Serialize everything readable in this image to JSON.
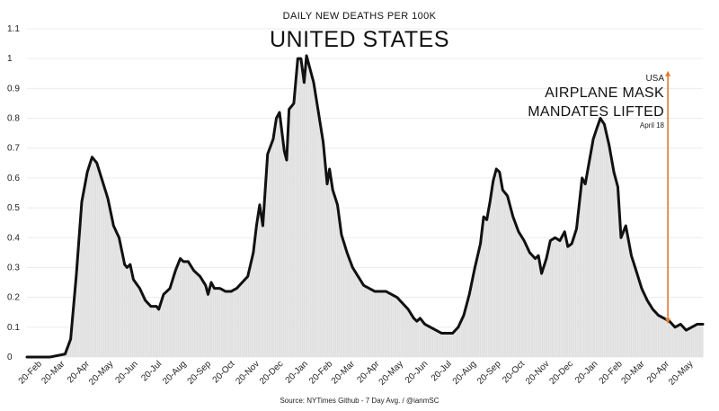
{
  "chart_data": {
    "type": "area",
    "subtitle": "DAILY NEW DEATHS PER 100K",
    "title": "UNITED STATES",
    "source": "Source: NYTimes Github - 7 Day Avg. / @ianmSC",
    "ylim": [
      0,
      1.1
    ],
    "yticks": [
      "0",
      "0.1",
      "0.2",
      "0.3",
      "0.4",
      "0.5",
      "0.6",
      "0.7",
      "0.8",
      "0.9",
      "1",
      "1.1"
    ],
    "x_start": "2020-02-01",
    "x_end": "2022-06-01",
    "xtick_labels": [
      "20-Feb",
      "20-Mar",
      "20-Apr",
      "20-May",
      "20-Jun",
      "20-Jul",
      "20-Aug",
      "20-Sep",
      "20-Oct",
      "20-Nov",
      "20-Dec",
      "20-Jan",
      "20-Feb",
      "20-Mar",
      "20-Apr",
      "20-May",
      "20-Jun",
      "20-Jul",
      "20-Aug",
      "20-Sep",
      "20-Oct",
      "20-Nov",
      "20-Dec",
      "20-Jan",
      "20-Feb",
      "20-Mar",
      "20-Apr",
      "20-May"
    ],
    "xtick_dates": [
      "2020-02-20",
      "2020-03-20",
      "2020-04-20",
      "2020-05-20",
      "2020-06-20",
      "2020-07-20",
      "2020-08-20",
      "2020-09-20",
      "2020-10-20",
      "2020-11-20",
      "2020-12-20",
      "2021-01-20",
      "2021-02-20",
      "2021-03-20",
      "2021-04-20",
      "2021-05-20",
      "2021-06-20",
      "2021-07-20",
      "2021-08-20",
      "2021-09-20",
      "2021-10-20",
      "2021-11-20",
      "2021-12-20",
      "2022-01-20",
      "2022-02-20",
      "2022-03-20",
      "2022-04-20",
      "2022-05-20"
    ],
    "series": [
      {
        "line_color": "#111111",
        "fill_color": "#e0e0e0",
        "points": [
          [
            "2020-02-01",
            0.0
          ],
          [
            "2020-03-01",
            0.0
          ],
          [
            "2020-03-20",
            0.01
          ],
          [
            "2020-03-27",
            0.06
          ],
          [
            "2020-04-03",
            0.27
          ],
          [
            "2020-04-10",
            0.52
          ],
          [
            "2020-04-17",
            0.62
          ],
          [
            "2020-04-23",
            0.67
          ],
          [
            "2020-04-29",
            0.65
          ],
          [
            "2020-05-06",
            0.59
          ],
          [
            "2020-05-13",
            0.53
          ],
          [
            "2020-05-20",
            0.44
          ],
          [
            "2020-05-27",
            0.4
          ],
          [
            "2020-06-03",
            0.31
          ],
          [
            "2020-06-06",
            0.3
          ],
          [
            "2020-06-10",
            0.31
          ],
          [
            "2020-06-14",
            0.26
          ],
          [
            "2020-06-22",
            0.23
          ],
          [
            "2020-06-29",
            0.19
          ],
          [
            "2020-07-06",
            0.17
          ],
          [
            "2020-07-13",
            0.17
          ],
          [
            "2020-07-16",
            0.16
          ],
          [
            "2020-07-22",
            0.21
          ],
          [
            "2020-07-30",
            0.23
          ],
          [
            "2020-08-06",
            0.29
          ],
          [
            "2020-08-12",
            0.33
          ],
          [
            "2020-08-16",
            0.32
          ],
          [
            "2020-08-22",
            0.32
          ],
          [
            "2020-08-29",
            0.29
          ],
          [
            "2020-09-06",
            0.27
          ],
          [
            "2020-09-13",
            0.24
          ],
          [
            "2020-09-16",
            0.21
          ],
          [
            "2020-09-20",
            0.25
          ],
          [
            "2020-09-24",
            0.23
          ],
          [
            "2020-10-01",
            0.23
          ],
          [
            "2020-10-08",
            0.22
          ],
          [
            "2020-10-15",
            0.22
          ],
          [
            "2020-10-22",
            0.23
          ],
          [
            "2020-10-29",
            0.25
          ],
          [
            "2020-11-05",
            0.27
          ],
          [
            "2020-11-12",
            0.35
          ],
          [
            "2020-11-16",
            0.44
          ],
          [
            "2020-11-20",
            0.51
          ],
          [
            "2020-11-24",
            0.44
          ],
          [
            "2020-11-30",
            0.68
          ],
          [
            "2020-12-07",
            0.73
          ],
          [
            "2020-12-11",
            0.8
          ],
          [
            "2020-12-15",
            0.82
          ],
          [
            "2020-12-21",
            0.69
          ],
          [
            "2020-12-24",
            0.66
          ],
          [
            "2020-12-27",
            0.83
          ],
          [
            "2021-01-02",
            0.85
          ],
          [
            "2021-01-07",
            1.0
          ],
          [
            "2021-01-11",
            1.0
          ],
          [
            "2021-01-15",
            0.92
          ],
          [
            "2021-01-18",
            1.01
          ],
          [
            "2021-01-22",
            0.97
          ],
          [
            "2021-01-27",
            0.92
          ],
          [
            "2021-02-02",
            0.82
          ],
          [
            "2021-02-08",
            0.72
          ],
          [
            "2021-02-13",
            0.58
          ],
          [
            "2021-02-16",
            0.63
          ],
          [
            "2021-02-20",
            0.56
          ],
          [
            "2021-02-26",
            0.51
          ],
          [
            "2021-03-03",
            0.41
          ],
          [
            "2021-03-10",
            0.35
          ],
          [
            "2021-03-17",
            0.3
          ],
          [
            "2021-03-24",
            0.27
          ],
          [
            "2021-03-31",
            0.24
          ],
          [
            "2021-04-07",
            0.23
          ],
          [
            "2021-04-14",
            0.22
          ],
          [
            "2021-04-21",
            0.22
          ],
          [
            "2021-04-28",
            0.22
          ],
          [
            "2021-05-05",
            0.21
          ],
          [
            "2021-05-12",
            0.2
          ],
          [
            "2021-05-19",
            0.18
          ],
          [
            "2021-05-26",
            0.16
          ],
          [
            "2021-06-02",
            0.13
          ],
          [
            "2021-06-06",
            0.12
          ],
          [
            "2021-06-10",
            0.13
          ],
          [
            "2021-06-16",
            0.11
          ],
          [
            "2021-06-23",
            0.1
          ],
          [
            "2021-06-30",
            0.09
          ],
          [
            "2021-07-07",
            0.08
          ],
          [
            "2021-07-14",
            0.08
          ],
          [
            "2021-07-21",
            0.08
          ],
          [
            "2021-07-28",
            0.1
          ],
          [
            "2021-08-04",
            0.14
          ],
          [
            "2021-08-11",
            0.21
          ],
          [
            "2021-08-18",
            0.3
          ],
          [
            "2021-08-25",
            0.38
          ],
          [
            "2021-08-29",
            0.47
          ],
          [
            "2021-09-02",
            0.46
          ],
          [
            "2021-09-06",
            0.52
          ],
          [
            "2021-09-10",
            0.59
          ],
          [
            "2021-09-14",
            0.63
          ],
          [
            "2021-09-18",
            0.62
          ],
          [
            "2021-09-22",
            0.56
          ],
          [
            "2021-09-28",
            0.54
          ],
          [
            "2021-10-05",
            0.47
          ],
          [
            "2021-10-12",
            0.42
          ],
          [
            "2021-10-19",
            0.39
          ],
          [
            "2021-10-26",
            0.35
          ],
          [
            "2021-11-02",
            0.33
          ],
          [
            "2021-11-06",
            0.34
          ],
          [
            "2021-11-10",
            0.28
          ],
          [
            "2021-11-16",
            0.33
          ],
          [
            "2021-11-21",
            0.39
          ],
          [
            "2021-11-27",
            0.4
          ],
          [
            "2021-12-03",
            0.39
          ],
          [
            "2021-12-09",
            0.42
          ],
          [
            "2021-12-13",
            0.37
          ],
          [
            "2021-12-18",
            0.38
          ],
          [
            "2021-12-24",
            0.43
          ],
          [
            "2021-12-31",
            0.6
          ],
          [
            "2022-01-04",
            0.58
          ],
          [
            "2022-01-10",
            0.67
          ],
          [
            "2022-01-14",
            0.73
          ],
          [
            "2022-01-19",
            0.77
          ],
          [
            "2022-01-23",
            0.8
          ],
          [
            "2022-01-28",
            0.78
          ],
          [
            "2022-02-03",
            0.71
          ],
          [
            "2022-02-09",
            0.62
          ],
          [
            "2022-02-14",
            0.57
          ],
          [
            "2022-02-18",
            0.4
          ],
          [
            "2022-02-24",
            0.44
          ],
          [
            "2022-03-03",
            0.34
          ],
          [
            "2022-03-09",
            0.29
          ],
          [
            "2022-03-16",
            0.23
          ],
          [
            "2022-03-23",
            0.19
          ],
          [
            "2022-03-30",
            0.16
          ],
          [
            "2022-04-06",
            0.14
          ],
          [
            "2022-04-13",
            0.13
          ],
          [
            "2022-04-20",
            0.12
          ],
          [
            "2022-04-27",
            0.1
          ],
          [
            "2022-05-04",
            0.11
          ],
          [
            "2022-05-11",
            0.09
          ],
          [
            "2022-05-18",
            0.1
          ],
          [
            "2022-05-25",
            0.11
          ],
          [
            "2022-06-01",
            0.11
          ]
        ]
      }
    ],
    "annotation": {
      "label_top": "USA",
      "label_line1": "AIRPLANE MASK",
      "label_line2": "MANDATES LIFTED",
      "label_date": "April 18",
      "date": "2022-04-18",
      "arrow_from_value": 0.95,
      "arrow_to_value": 0.12,
      "color": "#e07b2a"
    }
  }
}
